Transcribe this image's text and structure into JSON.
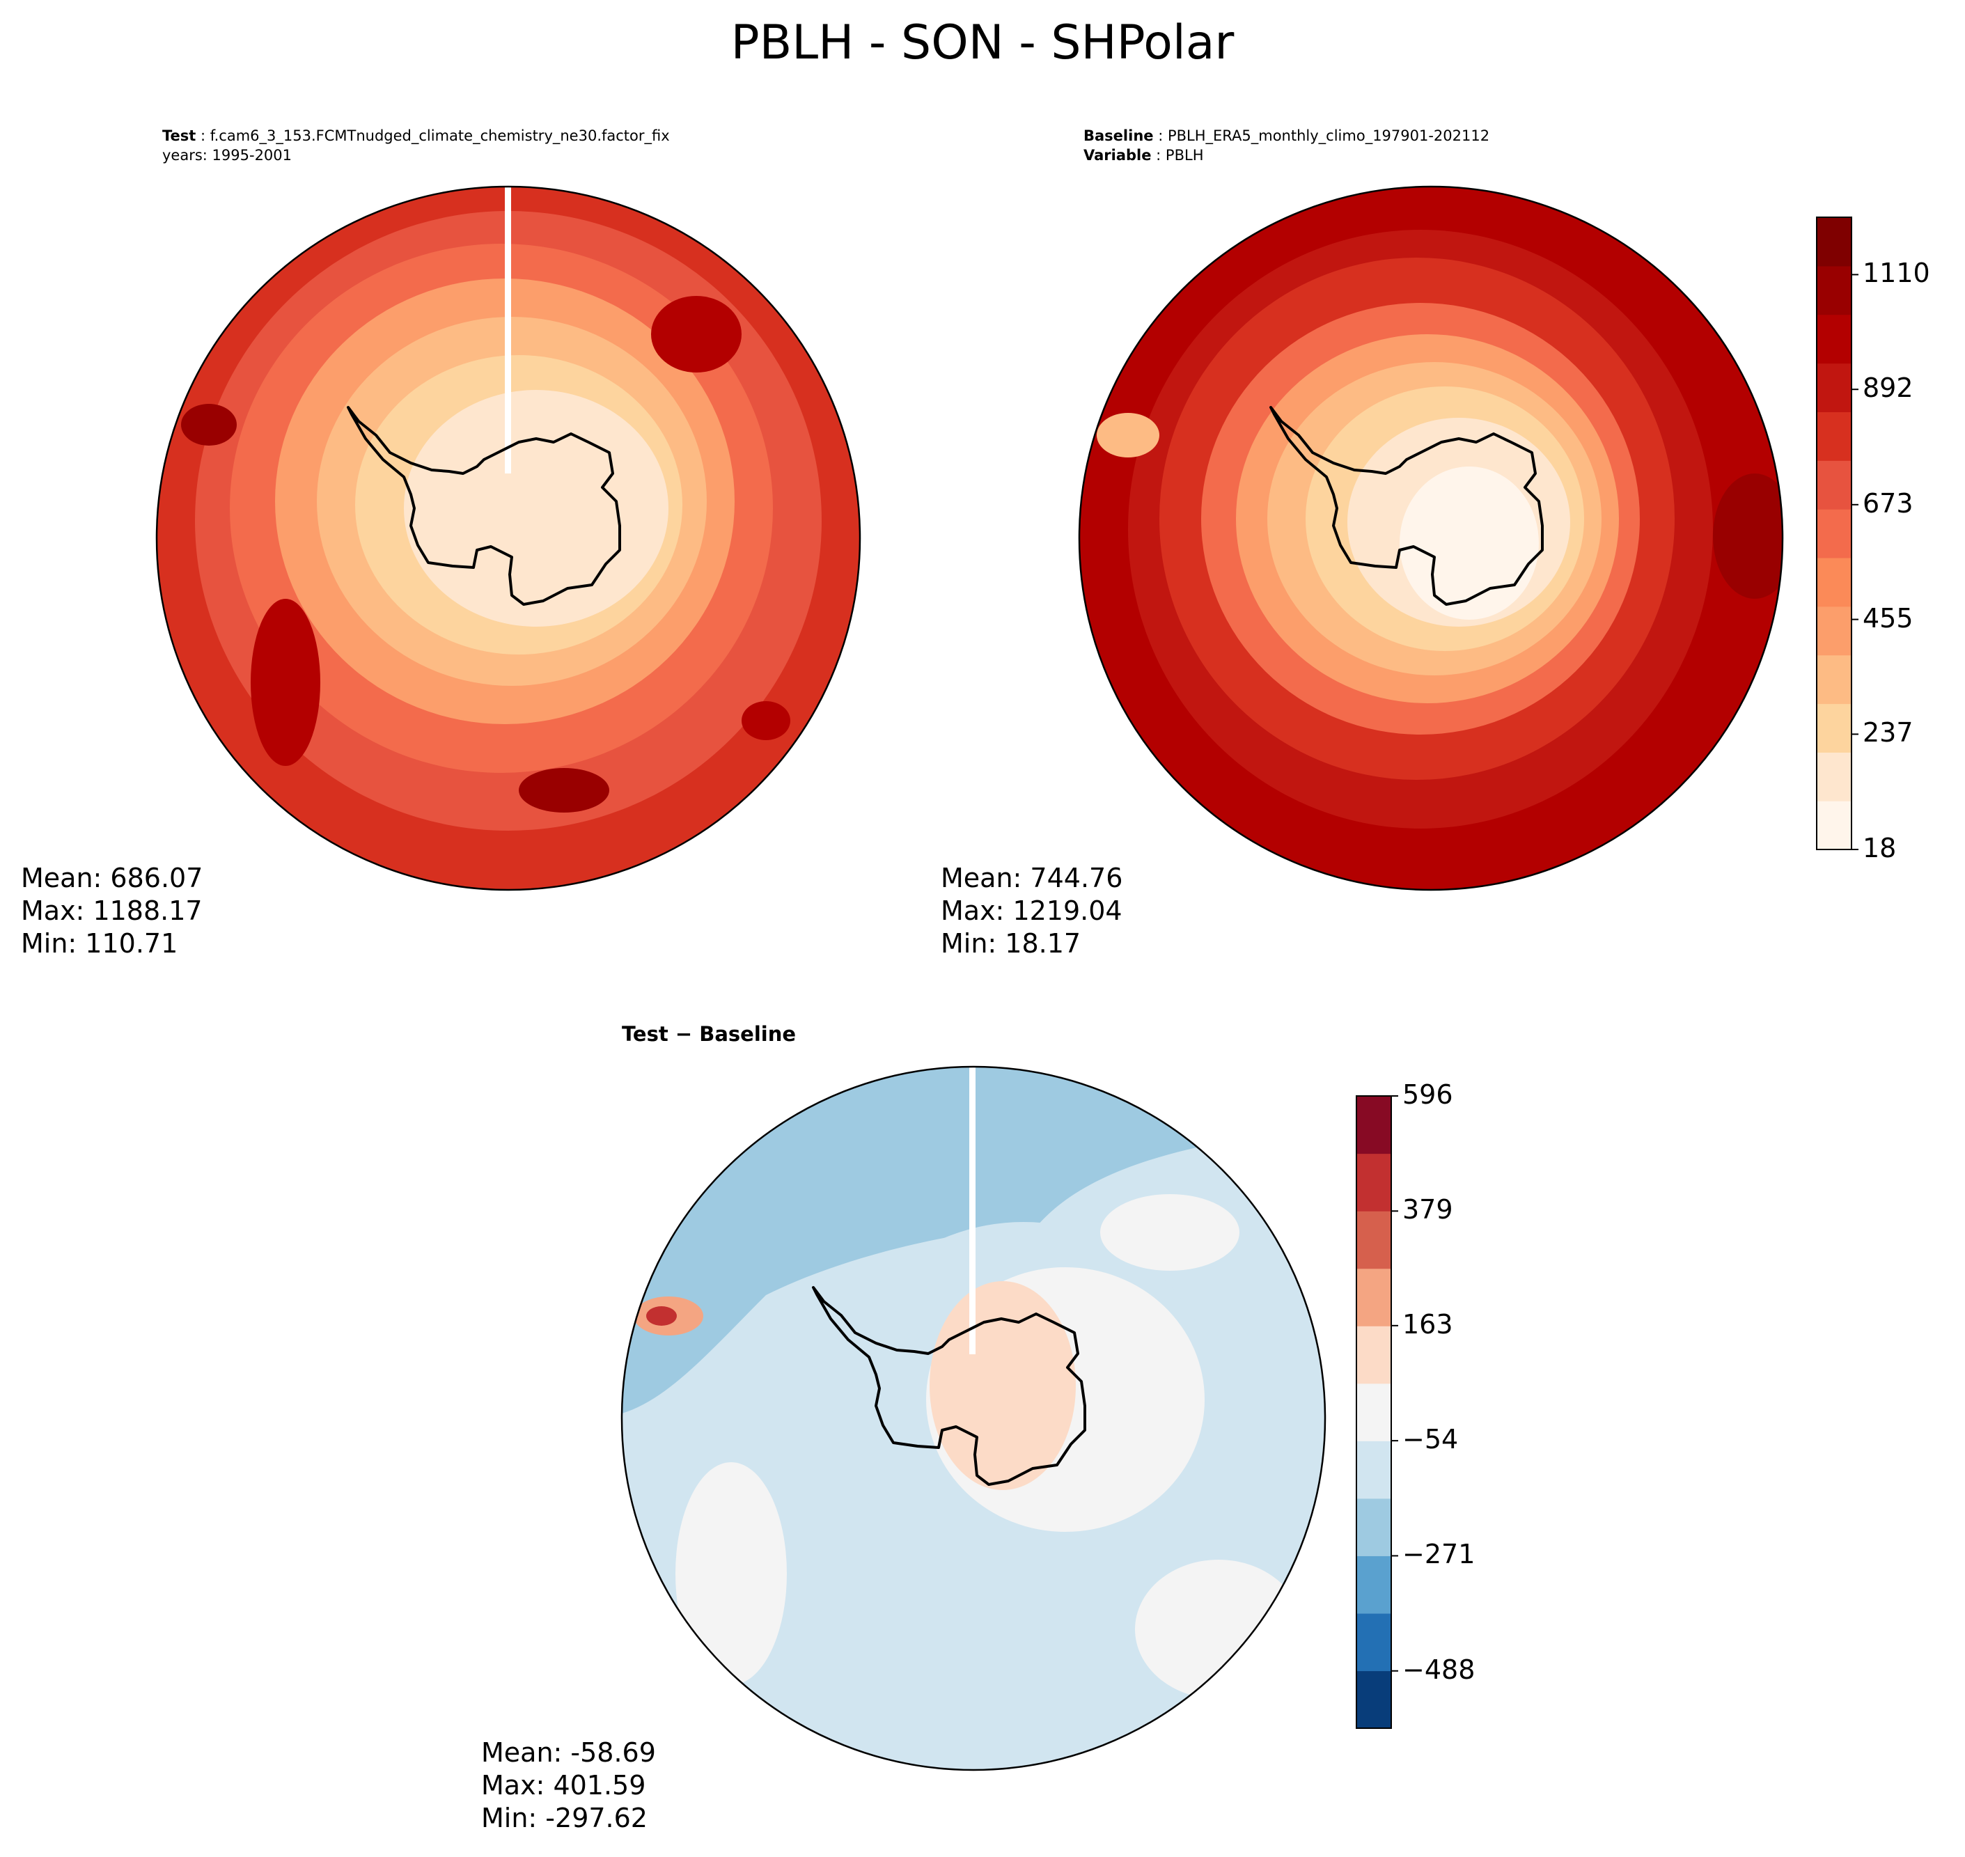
{
  "figure": {
    "title": "PBLH - SON - SHPolar"
  },
  "chart_data": [
    {
      "type": "heatmap",
      "projection": "south-polar-stereographic",
      "subtitle_line1_label": "Test",
      "subtitle_line1_value": "f.cam6_3_153.FCMTnudged_climate_chemistry_ne30.factor_fix",
      "subtitle_line2_value": "years: 1995-2001",
      "stats": {
        "mean": "Mean: 686.07",
        "max": "Max: 1188.17",
        "min": "Min: 110.71"
      },
      "colormap": "Reds",
      "shared_colorbar": true
    },
    {
      "type": "heatmap",
      "projection": "south-polar-stereographic",
      "subtitle_line1_label": "Baseline",
      "subtitle_line1_value": "PBLH_ERA5_monthly_climo_197901-202112",
      "subtitle_line2_label": "Variable",
      "subtitle_line2_value": "PBLH",
      "stats": {
        "mean": "Mean: 744.76",
        "max": "Max: 1219.04",
        "min": "Min: 18.17"
      },
      "colorbar": {
        "ticks": [
          "18",
          "237",
          "455",
          "673",
          "892",
          "1110"
        ],
        "range": [
          18,
          1219
        ],
        "levels": 13,
        "colors": [
          "#fff5eb",
          "#fee6ce",
          "#fdd49e",
          "#fdbb84",
          "#fc9e6b",
          "#fb8a58",
          "#f36b4c",
          "#e7533f",
          "#d7301f",
          "#c11610",
          "#b30000",
          "#990000",
          "#7f0000"
        ]
      }
    },
    {
      "type": "heatmap",
      "projection": "south-polar-stereographic",
      "subtitle": "Test − Baseline",
      "stats": {
        "mean": "Mean: -58.69",
        "max": "Max: 401.59",
        "min": "Min: -297.62"
      },
      "colorbar": {
        "ticks": [
          "−488",
          "−271",
          "−54",
          "163",
          "379",
          "596"
        ],
        "range": [
          -596,
          596
        ],
        "levels": 11,
        "colors": [
          "#083d7a",
          "#2370b4",
          "#5aa1cf",
          "#9ecae1",
          "#d1e5f0",
          "#f4f4f4",
          "#fcdbc7",
          "#f4a582",
          "#d6604d",
          "#c23030",
          "#870a24"
        ]
      }
    }
  ]
}
